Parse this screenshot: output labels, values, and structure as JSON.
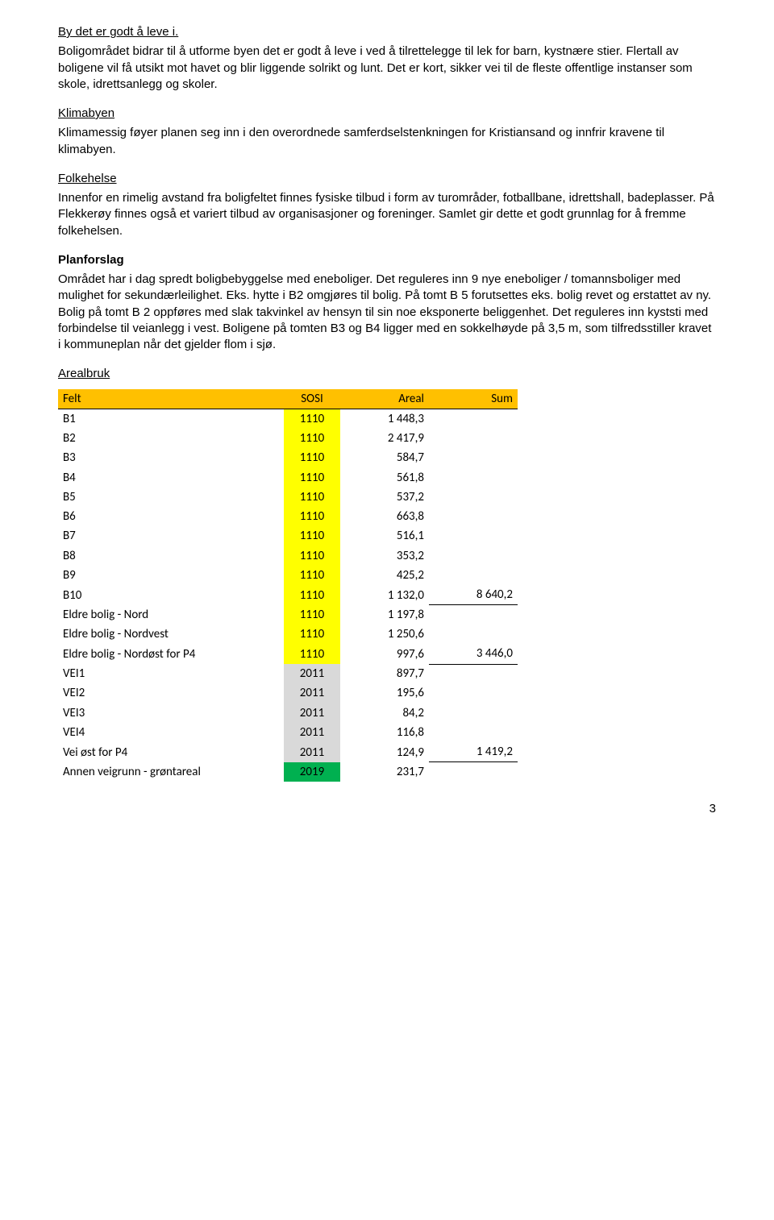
{
  "sections": [
    {
      "heading": "By det er godt å leve i.",
      "body": "Boligområdet bidrar til å utforme byen det er godt å leve i ved å tilrettelegge til lek for barn, kystnære stier. Flertall av boligene vil få utsikt mot havet og blir liggende solrikt og lunt. Det er kort, sikker vei til de fleste offentlige instanser som skole, idrettsanlegg og skoler."
    },
    {
      "heading": "Klimabyen",
      "body": "Klimamessig føyer planen seg inn i den overordnede samferdselstenkningen for Kristiansand og innfrir kravene til klimabyen."
    },
    {
      "heading": "Folkehelse",
      "body": "Innenfor en rimelig avstand fra boligfeltet finnes fysiske tilbud i form av turområder, fotballbane,  idrettshall, badeplasser. På Flekkerøy finnes også et variert tilbud av organisasjoner og foreninger.  Samlet gir dette et godt grunnlag for å fremme folkehelsen."
    }
  ],
  "planforslag": {
    "heading": "Planforslag",
    "body": "Området har i dag spredt boligbebyggelse med eneboliger. Det reguleres inn 9 nye eneboliger / tomannsboliger med mulighet for sekundærleilighet. Eks. hytte i B2 omgjøres til bolig. På tomt B 5 forutsettes eks. bolig revet og erstattet av ny. Bolig på tomt B 2 oppføres med slak takvinkel av hensyn til sin noe eksponerte beliggenhet. Det reguleres inn kyststi med forbindelse til veianlegg i vest. Boligene på tomten B3 og B4 ligger med en sokkelhøyde på 3,5 m, som tilfredsstiller kravet i kommuneplan når det gjelder flom i sjø."
  },
  "arealbruk": {
    "heading": "Arealbruk",
    "columns": {
      "c0": "Felt",
      "c1": "SOSI",
      "c2": "Areal",
      "c3": "Sum"
    },
    "header_bg": "#ffc000",
    "colors": {
      "yellow": "#ffff00",
      "grey": "#d9d9d9",
      "green": "#00b050"
    },
    "rows": [
      {
        "felt": "B1",
        "sosi": "1110",
        "sosi_class": "sosi-yellow",
        "areal": "1 448,3",
        "sum": ""
      },
      {
        "felt": "B2",
        "sosi": "1110",
        "sosi_class": "sosi-yellow",
        "areal": "2 417,9",
        "sum": ""
      },
      {
        "felt": "B3",
        "sosi": "1110",
        "sosi_class": "sosi-yellow",
        "areal": "584,7",
        "sum": ""
      },
      {
        "felt": "B4",
        "sosi": "1110",
        "sosi_class": "sosi-yellow",
        "areal": "561,8",
        "sum": ""
      },
      {
        "felt": "B5",
        "sosi": "1110",
        "sosi_class": "sosi-yellow",
        "areal": "537,2",
        "sum": ""
      },
      {
        "felt": "B6",
        "sosi": "1110",
        "sosi_class": "sosi-yellow",
        "areal": "663,8",
        "sum": ""
      },
      {
        "felt": "B7",
        "sosi": "1110",
        "sosi_class": "sosi-yellow",
        "areal": "516,1",
        "sum": ""
      },
      {
        "felt": "B8",
        "sosi": "1110",
        "sosi_class": "sosi-yellow",
        "areal": "353,2",
        "sum": ""
      },
      {
        "felt": "B9",
        "sosi": "1110",
        "sosi_class": "sosi-yellow",
        "areal": "425,2",
        "sum": ""
      },
      {
        "felt": "B10",
        "sosi": "1110",
        "sosi_class": "sosi-yellow",
        "areal": "1 132,0",
        "sum": "8 640,2",
        "sum_border": true
      },
      {
        "felt": "Eldre bolig - Nord",
        "sosi": "1110",
        "sosi_class": "sosi-yellow",
        "areal": "1 197,8",
        "sum": ""
      },
      {
        "felt": "Eldre bolig - Nordvest",
        "sosi": "1110",
        "sosi_class": "sosi-yellow",
        "areal": "1 250,6",
        "sum": ""
      },
      {
        "felt": "Eldre bolig - Nordøst for P4",
        "sosi": "1110",
        "sosi_class": "sosi-yellow",
        "areal": "997,6",
        "sum": "3 446,0",
        "sum_border": true
      },
      {
        "felt": "VEI1",
        "sosi": "2011",
        "sosi_class": "sosi-grey",
        "areal": "897,7",
        "sum": ""
      },
      {
        "felt": "VEI2",
        "sosi": "2011",
        "sosi_class": "sosi-grey",
        "areal": "195,6",
        "sum": ""
      },
      {
        "felt": "VEI3",
        "sosi": "2011",
        "sosi_class": "sosi-grey",
        "areal": "84,2",
        "sum": ""
      },
      {
        "felt": "VEI4",
        "sosi": "2011",
        "sosi_class": "sosi-grey",
        "areal": "116,8",
        "sum": ""
      },
      {
        "felt": "Vei øst for P4",
        "sosi": "2011",
        "sosi_class": "sosi-grey",
        "areal": "124,9",
        "sum": "1 419,2",
        "sum_border": true
      },
      {
        "felt": "Annen veigrunn - grøntareal",
        "sosi": "2019",
        "sosi_class": "sosi-green",
        "areal": "231,7",
        "sum": ""
      }
    ]
  },
  "page_number": "3"
}
